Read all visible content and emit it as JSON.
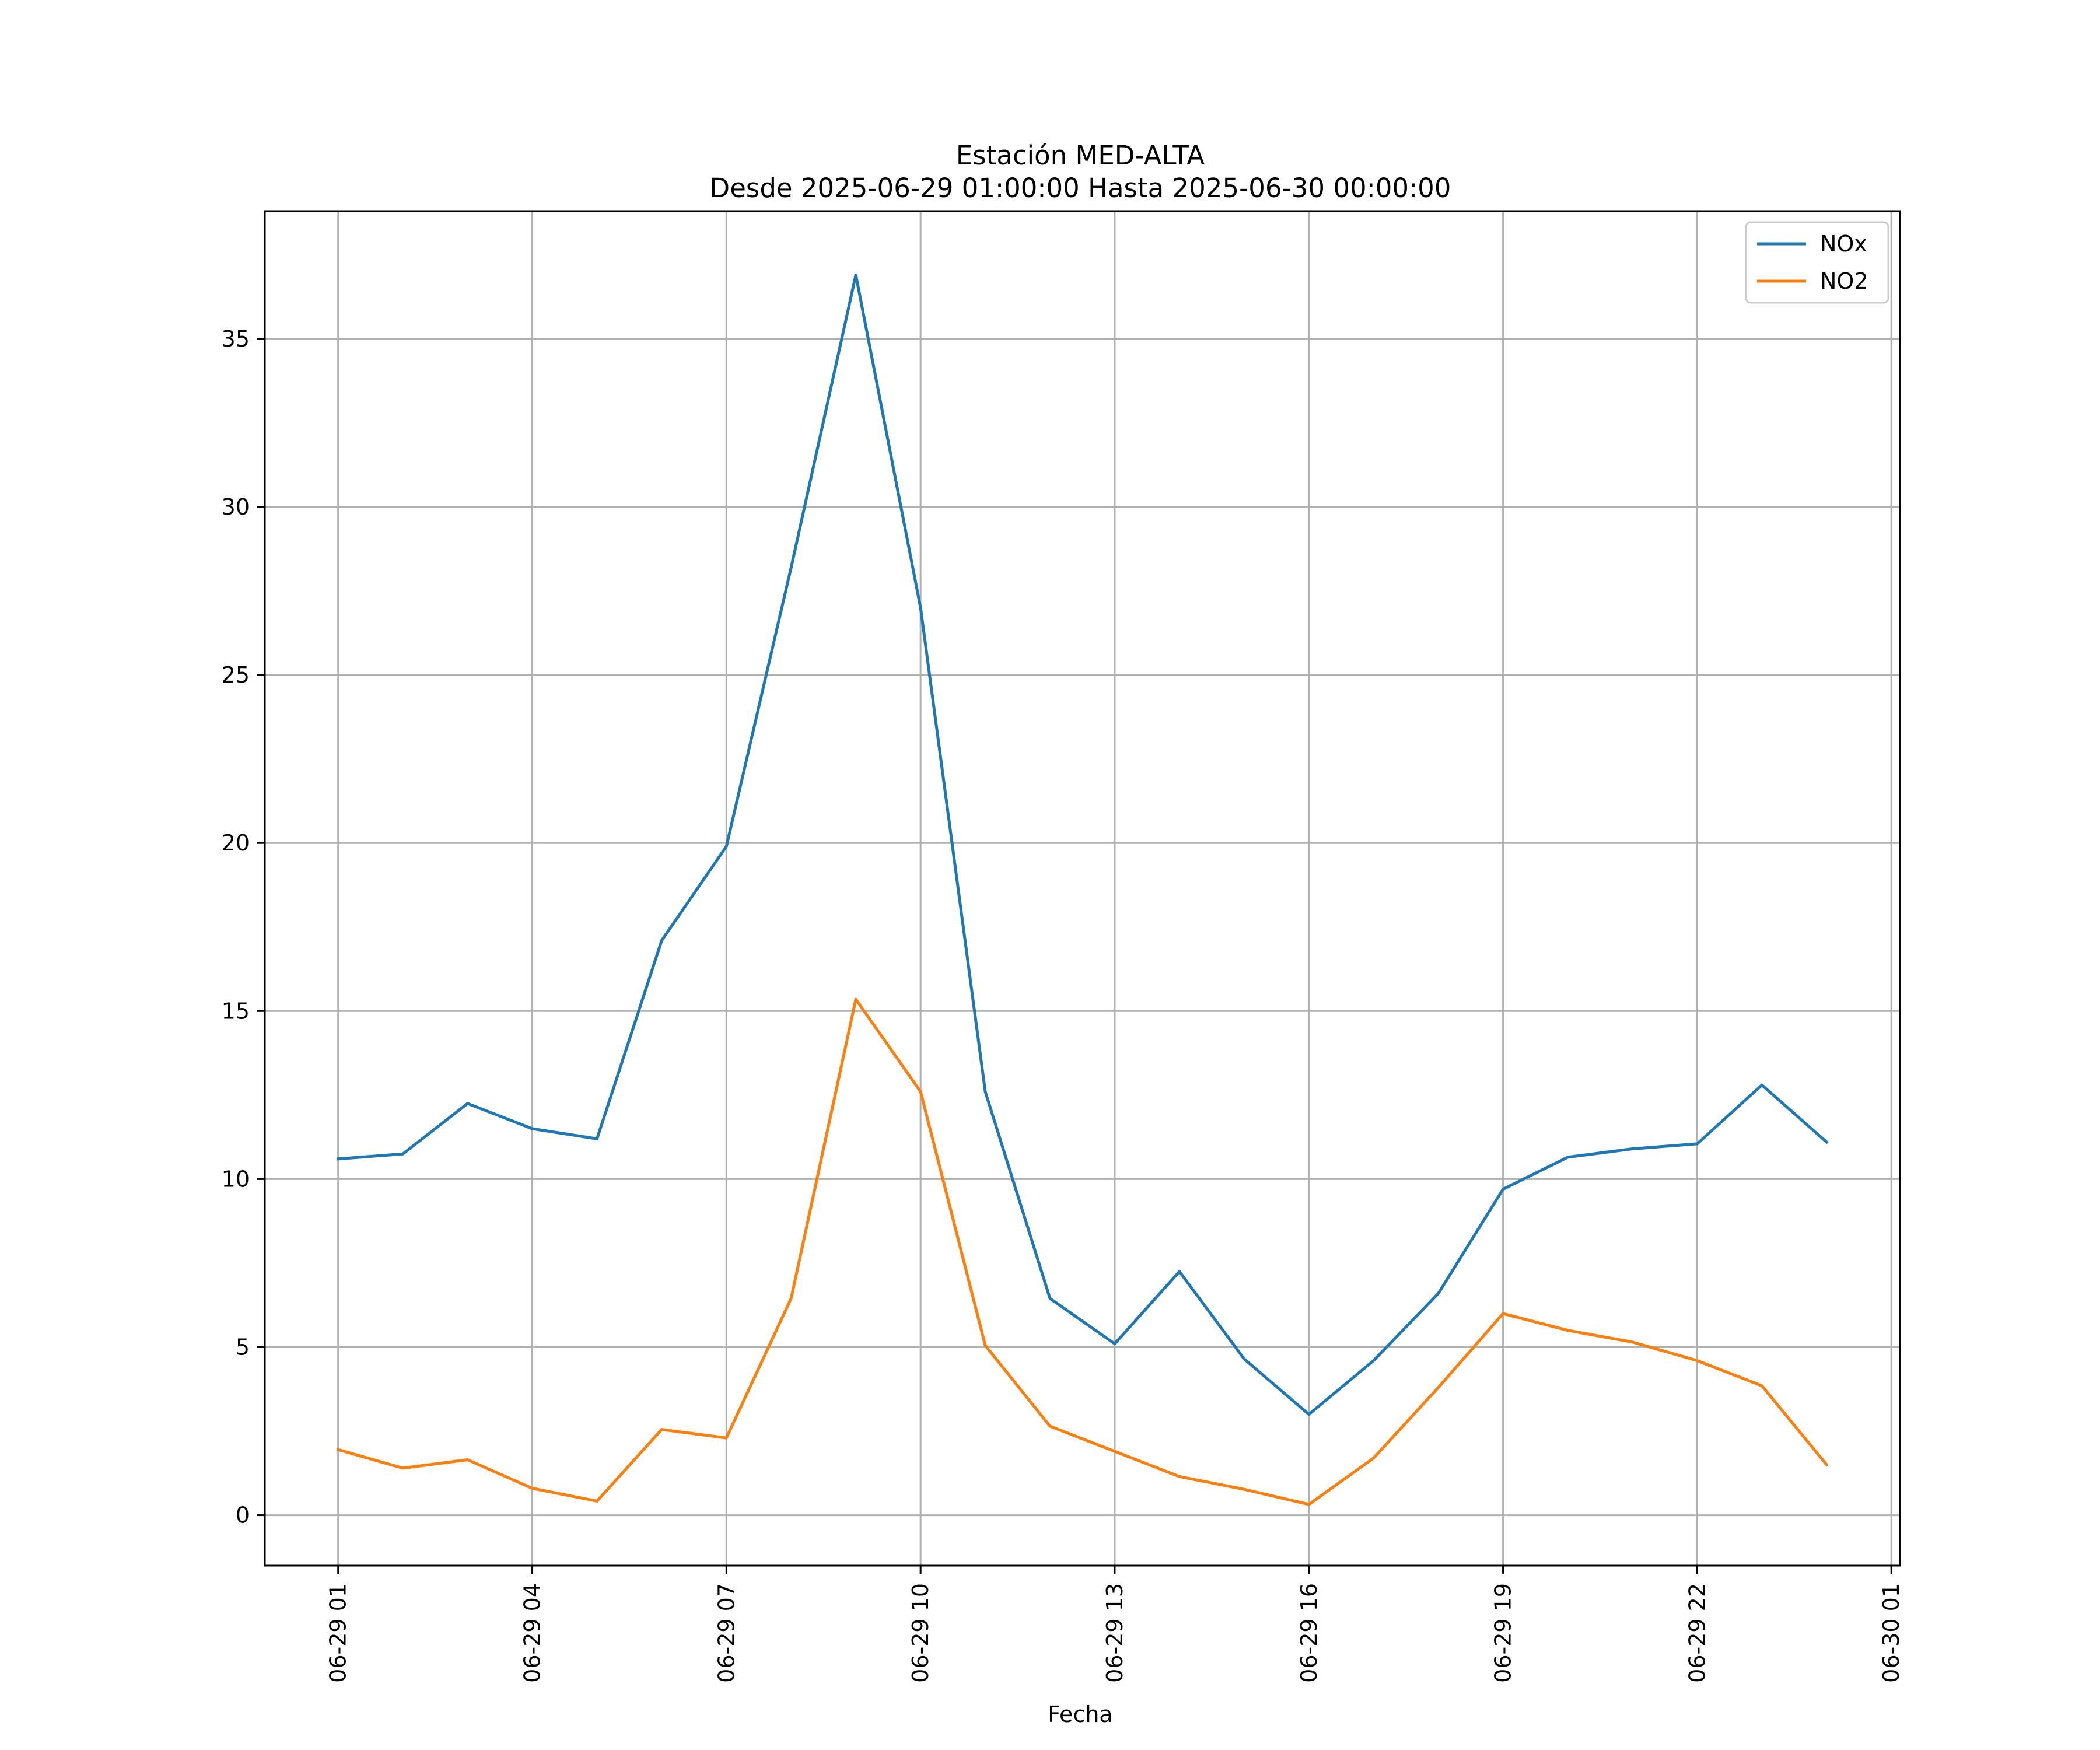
{
  "chart_data": {
    "type": "line",
    "title": "Estación MED-ALTA",
    "subtitle": "Desde 2025-06-29 01:00:00 Hasta 2025-06-30 00:00:00",
    "xlabel": "Fecha",
    "ylabel": "",
    "x": [
      "2025-06-29 01:00",
      "2025-06-29 02:00",
      "2025-06-29 03:00",
      "2025-06-29 04:00",
      "2025-06-29 05:00",
      "2025-06-29 06:00",
      "2025-06-29 07:00",
      "2025-06-29 08:00",
      "2025-06-29 09:00",
      "2025-06-29 10:00",
      "2025-06-29 11:00",
      "2025-06-29 12:00",
      "2025-06-29 13:00",
      "2025-06-29 14:00",
      "2025-06-29 15:00",
      "2025-06-29 16:00",
      "2025-06-29 17:00",
      "2025-06-29 18:00",
      "2025-06-29 19:00",
      "2025-06-29 20:00",
      "2025-06-29 21:00",
      "2025-06-29 22:00",
      "2025-06-29 23:00",
      "2025-06-30 00:00"
    ],
    "series": [
      {
        "name": "NOx",
        "color": "#1f77b4",
        "values": [
          10.6,
          10.75,
          12.25,
          11.5,
          11.2,
          17.1,
          19.9,
          28.2,
          36.9,
          27.0,
          12.6,
          6.45,
          5.1,
          7.25,
          4.65,
          3.0,
          4.6,
          6.6,
          9.7,
          10.65,
          10.9,
          11.05,
          12.8,
          11.1
        ]
      },
      {
        "name": "NO2",
        "color": "#ff7f0e",
        "values": [
          1.95,
          1.4,
          1.65,
          0.8,
          0.42,
          2.55,
          2.3,
          6.45,
          15.35,
          12.6,
          5.05,
          2.65,
          1.9,
          1.15,
          0.77,
          0.32,
          1.7,
          3.8,
          6.0,
          5.5,
          5.15,
          4.6,
          3.85,
          1.5
        ]
      }
    ],
    "x_ticks": [
      "06-29 01",
      "06-29 04",
      "06-29 07",
      "06-29 10",
      "06-29 13",
      "06-29 16",
      "06-29 19",
      "06-29 22",
      "06-30 01"
    ],
    "y_ticks": [
      "0",
      "5",
      "10",
      "15",
      "20",
      "25",
      "30",
      "35"
    ],
    "xlim": [
      "2025-06-28 23:52",
      "2025-06-30 01:08"
    ],
    "ylim": [
      -1.5,
      38.8
    ],
    "grid": true,
    "legend_position": "top-right"
  }
}
